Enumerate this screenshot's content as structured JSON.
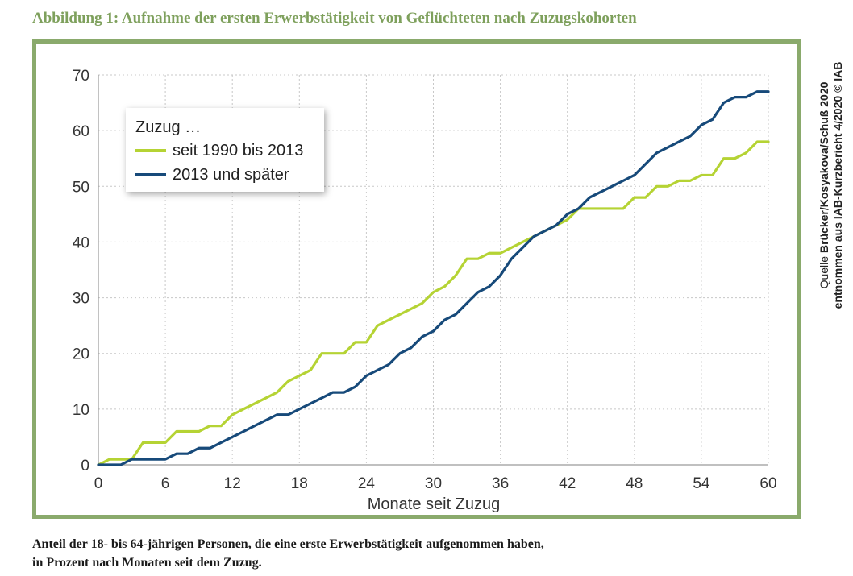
{
  "figure": {
    "title": "Abbildung 1: Aufnahme der ersten Erwerbstätigkeit von Geflüchteten nach Zuzugskohorten",
    "source_prefix": "Quelle",
    "source_authors": "Brücker/Kosyakova/Schuß 2020",
    "source_line2": "entnommen aus IAB-Kurzbericht 4/2020 © IAB",
    "caption_line1": "Anteil der 18- bis 64-jährigen Personen, die eine erste Erwerbstätigkeit aufgenommen haben,",
    "caption_line2": "in Prozent nach Monaten seit dem Zuzug."
  },
  "colors": {
    "title": "#7ea05c",
    "frame": "#8aaa6c",
    "grid": "#c8c8c8",
    "axis": "#9a9a9a"
  },
  "chart_data": {
    "type": "line",
    "title": "Aufnahme der ersten Erwerbstätigkeit von Geflüchteten nach Zuzugskohorten",
    "xlabel": "Monate seit Zuzug",
    "ylabel": "",
    "xlim": [
      0,
      60
    ],
    "ylim": [
      0,
      70
    ],
    "xticks": [
      0,
      6,
      12,
      18,
      24,
      30,
      36,
      42,
      48,
      54,
      60
    ],
    "yticks": [
      0,
      10,
      20,
      30,
      40,
      50,
      60,
      70
    ],
    "grid": true,
    "legend_title": "Zuzug …",
    "legend_position": "top-left",
    "x": [
      0,
      1,
      2,
      3,
      4,
      5,
      6,
      7,
      8,
      9,
      10,
      11,
      12,
      13,
      14,
      15,
      16,
      17,
      18,
      19,
      20,
      21,
      22,
      23,
      24,
      25,
      26,
      27,
      28,
      29,
      30,
      31,
      32,
      33,
      34,
      35,
      36,
      37,
      38,
      39,
      40,
      41,
      42,
      43,
      44,
      45,
      46,
      47,
      48,
      49,
      50,
      51,
      52,
      53,
      54,
      55,
      56,
      57,
      58,
      59,
      60
    ],
    "series": [
      {
        "name": "seit 1990 bis 2013",
        "color": "#b5d334",
        "values": [
          0,
          1,
          1,
          1,
          4,
          4,
          4,
          6,
          6,
          6,
          7,
          7,
          9,
          10,
          11,
          12,
          13,
          15,
          16,
          17,
          20,
          20,
          20,
          22,
          22,
          25,
          26,
          27,
          28,
          29,
          31,
          32,
          34,
          37,
          37,
          38,
          38,
          39,
          40,
          41,
          42,
          43,
          44,
          46,
          46,
          46,
          46,
          46,
          48,
          48,
          50,
          50,
          51,
          51,
          52,
          52,
          55,
          55,
          56,
          58,
          58
        ]
      },
      {
        "name": "2013 und später",
        "color": "#174a7a",
        "values": [
          0,
          0,
          0,
          1,
          1,
          1,
          1,
          2,
          2,
          3,
          3,
          4,
          5,
          6,
          7,
          8,
          9,
          9,
          10,
          11,
          12,
          13,
          13,
          14,
          16,
          17,
          18,
          20,
          21,
          23,
          24,
          26,
          27,
          29,
          31,
          32,
          34,
          37,
          39,
          41,
          42,
          43,
          45,
          46,
          48,
          49,
          50,
          51,
          52,
          54,
          56,
          57,
          58,
          59,
          61,
          62,
          65,
          66,
          66,
          67,
          67
        ]
      }
    ]
  }
}
